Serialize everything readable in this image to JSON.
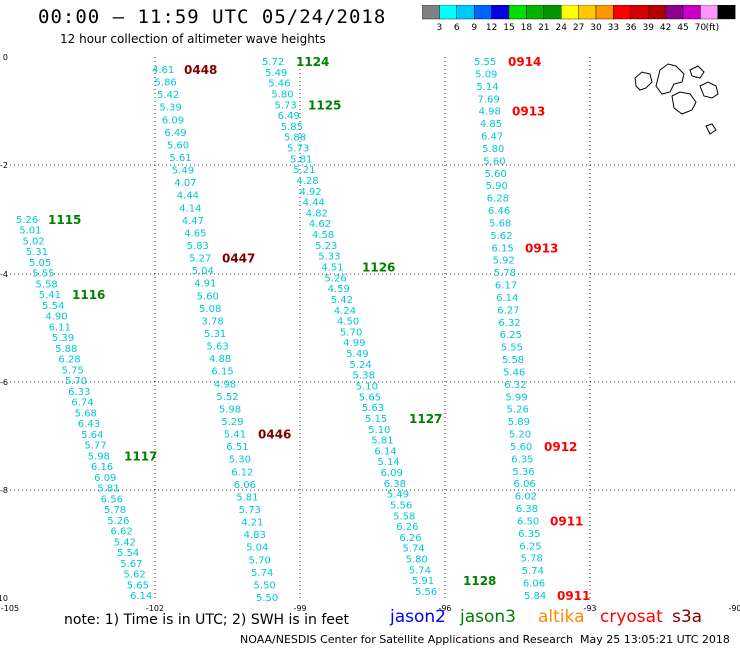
{
  "header": {
    "title": "00:00 – 11:59 UTC 05/24/2018",
    "subtitle": "12 hour collection of altimeter wave heights"
  },
  "colorbar": {
    "labels": [
      "3",
      "6",
      "9",
      "12",
      "15",
      "18",
      "21",
      "24",
      "27",
      "30",
      "33",
      "36",
      "39",
      "42",
      "45",
      "70"
    ],
    "unit": "(ft)",
    "colors": [
      "#808080",
      "#00ffff",
      "#00c8ff",
      "#0064ff",
      "#0000e0",
      "#00e000",
      "#00b400",
      "#009600",
      "#ffff00",
      "#ffc800",
      "#ff9600",
      "#ff0000",
      "#d20000",
      "#b40000",
      "#8c008c",
      "#c800c8",
      "#ff96ff",
      "#000000"
    ]
  },
  "axes": {
    "x_ticks": [
      "-105",
      "-102",
      "-99",
      "-96",
      "-93",
      "-90"
    ],
    "y_ticks": [
      "0",
      "-2",
      "-4",
      "-6",
      "-8",
      "-10"
    ]
  },
  "note": "note:  1) Time is in UTC;  2) SWH is in feet",
  "satellites": [
    {
      "name": "jason2",
      "color": "#0000ff"
    },
    {
      "name": "jason3",
      "color": "#008000"
    },
    {
      "name": "altika",
      "color": "#ff8c00"
    },
    {
      "name": "cryosat",
      "color": "#ff0000"
    },
    {
      "name": "s3a",
      "color": "#800000"
    }
  ],
  "footer": "NOAA/NESDIS Center for Satellite Applications and Research",
  "timestamp": "May 25 13:05:21 UTC 2018",
  "tracks": [
    {
      "values": [
        "5.26",
        "5.01",
        "5.02",
        "5.31",
        "5.05",
        "5.55",
        "5.58",
        "5.41",
        "5.54",
        "4.90",
        "6.11",
        "5.39",
        "5.88",
        "6.28",
        "5.75",
        "5.70",
        "6.33",
        "6.74",
        "5.68",
        "6.43",
        "5.64",
        "5.77",
        "5.98",
        "6.16",
        "6.09",
        "5.81",
        "6.56",
        "5.78",
        "5.26",
        "6.62",
        "5.42",
        "5.54",
        "5.67",
        "5.62",
        "5.65",
        "6.14"
      ],
      "times": [
        {
          "t": "1115",
          "color": "#008000",
          "row": 0
        },
        {
          "t": "1116",
          "color": "#008000",
          "row": 7
        },
        {
          "t": "1117",
          "color": "#008000",
          "row": 22
        }
      ]
    },
    {
      "values": [
        "4.61",
        "5.86",
        "5.42",
        "5.39",
        "6.09",
        "6.49",
        "5.60",
        "5.61",
        "5.49",
        "4.07",
        "4.44",
        "4.14",
        "4.47",
        "4.65",
        "5.83",
        "5.27",
        "5.04",
        "4.91",
        "5.60",
        "5.08",
        "3.78",
        "5.31",
        "5.63",
        "4.88",
        "6.15",
        "4.98",
        "5.52",
        "5.98",
        "5.29",
        "5.41",
        "6.51",
        "5.30",
        "6.12",
        "6.06",
        "5.81",
        "5.73",
        "4.21",
        "4.83",
        "5.04",
        "5.70",
        "5.74",
        "5.50",
        "5.50"
      ],
      "times": [
        {
          "t": "0448",
          "color": "#800000",
          "row": 0
        },
        {
          "t": "0447",
          "color": "#800000",
          "row": 15
        },
        {
          "t": "0446",
          "color": "#800000",
          "row": 29
        }
      ]
    },
    {
      "values": [
        "5.72",
        "5.49",
        "5.46",
        "5.80",
        "5.73",
        "6.49",
        "5.85",
        "5.88",
        "5.73",
        "5.81",
        "5.21",
        "4.28",
        "4.92",
        "4.44",
        "4.82",
        "4.62",
        "4.58",
        "5.23",
        "5.33",
        "4.51",
        "5.26",
        "4.59",
        "5.42",
        "4.24",
        "4.50",
        "5.70",
        "4.99",
        "5.49",
        "5.24",
        "5.38",
        "5.10",
        "5.65",
        "5.63",
        "5.15",
        "5.10",
        "5.81",
        "6.14",
        "5.14",
        "6.09",
        "6.38",
        "5.49",
        "5.56",
        "5.58",
        "6.26",
        "6.26",
        "5.74",
        "5.80",
        "5.74",
        "5.91",
        "5.56"
      ],
      "times": [
        {
          "t": "1124",
          "color": "#008000",
          "row": 0
        },
        {
          "t": "1125",
          "color": "#008000",
          "row": 4
        },
        {
          "t": "1126",
          "color": "#008000",
          "row": 19
        },
        {
          "t": "1127",
          "color": "#008000",
          "row": 33
        },
        {
          "t": "1128",
          "color": "#008000",
          "row": 48
        }
      ]
    },
    {
      "values": [
        "5.55",
        "5.09",
        "5.14",
        "7.69",
        "4.98",
        "4.85",
        "6.47",
        "5.80",
        "5.60",
        "5.60",
        "5.90",
        "6.28",
        "6.46",
        "5.68",
        "5.62",
        "6.15",
        "5.92",
        "5.78",
        "6.17",
        "6.14",
        "6.27",
        "6.32",
        "6.25",
        "5.55",
        "5.58",
        "5.46",
        "6.32",
        "5.99",
        "5.26",
        "5.89",
        "5.20",
        "5.60",
        "6.35",
        "5.36",
        "6.06",
        "6.02",
        "6.38",
        "6.50",
        "6.35",
        "6.25",
        "5.78",
        "5.74",
        "6.06",
        "5.84"
      ],
      "times": [
        {
          "t": "0914",
          "color": "#ff0000",
          "row": 0
        },
        {
          "t": "0913",
          "color": "#ff0000",
          "row": 4
        },
        {
          "t": "0913",
          "color": "#ff0000",
          "row": 15
        },
        {
          "t": "0912",
          "color": "#ff0000",
          "row": 31
        },
        {
          "t": "0911",
          "color": "#ff0000",
          "row": 37
        },
        {
          "t": "0911",
          "color": "#ff0000",
          "row": 43
        }
      ]
    }
  ]
}
